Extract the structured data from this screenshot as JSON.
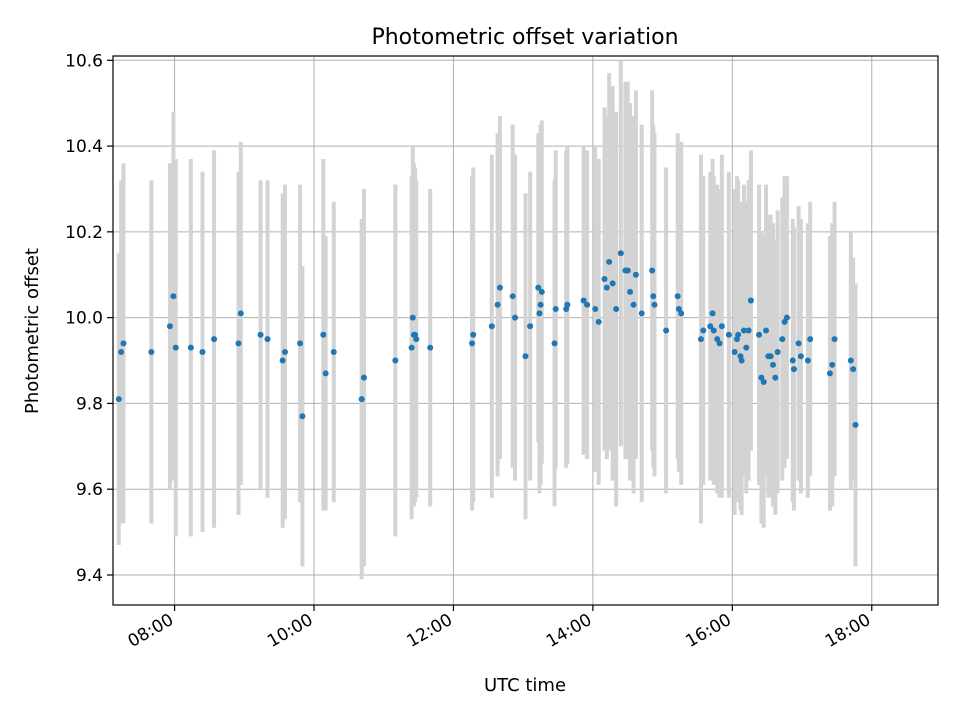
{
  "chart_data": {
    "type": "scatter",
    "title": "Photometric offset variation",
    "xlabel": "UTC time",
    "ylabel": "Photometric offset",
    "x_ticks": [
      "08:00",
      "10:00",
      "12:00",
      "14:00",
      "16:00",
      "18:00"
    ],
    "y_ticks": [
      "9.4",
      "9.6",
      "9.8",
      "10.0",
      "10.2",
      "10.4",
      "10.6"
    ],
    "xlim": [
      "07:07",
      "18:57"
    ],
    "ylim": [
      9.33,
      10.61
    ],
    "grid": true,
    "colors": {
      "point": "#1f77b4",
      "errorbar": "#d3d3d3",
      "grid": "#b0b0b0"
    },
    "points": [
      {
        "t": "07:12",
        "y": 9.81,
        "err": 0.34
      },
      {
        "t": "07:14",
        "y": 9.92,
        "err": 0.4
      },
      {
        "t": "07:16",
        "y": 9.94,
        "err": 0.42
      },
      {
        "t": "07:40",
        "y": 9.92,
        "err": 0.4
      },
      {
        "t": "07:56",
        "y": 9.98,
        "err": 0.38
      },
      {
        "t": "07:59",
        "y": 10.05,
        "err": 0.43
      },
      {
        "t": "08:01",
        "y": 9.93,
        "err": 0.44
      },
      {
        "t": "08:14",
        "y": 9.93,
        "err": 0.44
      },
      {
        "t": "08:24",
        "y": 9.92,
        "err": 0.42
      },
      {
        "t": "08:34",
        "y": 9.95,
        "err": 0.44
      },
      {
        "t": "08:55",
        "y": 9.94,
        "err": 0.4
      },
      {
        "t": "08:57",
        "y": 10.01,
        "err": 0.4
      },
      {
        "t": "09:14",
        "y": 9.96,
        "err": 0.36
      },
      {
        "t": "09:20",
        "y": 9.95,
        "err": 0.37
      },
      {
        "t": "09:33",
        "y": 9.9,
        "err": 0.39
      },
      {
        "t": "09:35",
        "y": 9.92,
        "err": 0.39
      },
      {
        "t": "09:48",
        "y": 9.94,
        "err": 0.37
      },
      {
        "t": "09:50",
        "y": 9.77,
        "err": 0.35
      },
      {
        "t": "10:08",
        "y": 9.96,
        "err": 0.41
      },
      {
        "t": "10:10",
        "y": 9.87,
        "err": 0.32
      },
      {
        "t": "10:17",
        "y": 9.92,
        "err": 0.35
      },
      {
        "t": "10:41",
        "y": 9.81,
        "err": 0.42
      },
      {
        "t": "10:43",
        "y": 9.86,
        "err": 0.44
      },
      {
        "t": "11:10",
        "y": 9.9,
        "err": 0.41
      },
      {
        "t": "11:24",
        "y": 9.93,
        "err": 0.4
      },
      {
        "t": "11:25",
        "y": 10.0,
        "err": 0.4
      },
      {
        "t": "11:26",
        "y": 9.96,
        "err": 0.4
      },
      {
        "t": "11:27",
        "y": 9.96,
        "err": 0.39
      },
      {
        "t": "11:28",
        "y": 9.95,
        "err": 0.37
      },
      {
        "t": "11:40",
        "y": 9.93,
        "err": 0.37
      },
      {
        "t": "12:16",
        "y": 9.94,
        "err": 0.39
      },
      {
        "t": "12:17",
        "y": 9.96,
        "err": 0.39
      },
      {
        "t": "12:33",
        "y": 9.98,
        "err": 0.4
      },
      {
        "t": "12:38",
        "y": 10.03,
        "err": 0.4
      },
      {
        "t": "12:40",
        "y": 10.07,
        "err": 0.4
      },
      {
        "t": "12:51",
        "y": 10.05,
        "err": 0.4
      },
      {
        "t": "12:53",
        "y": 10.0,
        "err": 0.38
      },
      {
        "t": "13:02",
        "y": 9.91,
        "err": 0.38
      },
      {
        "t": "13:06",
        "y": 9.98,
        "err": 0.36
      },
      {
        "t": "13:13",
        "y": 10.07,
        "err": 0.36
      },
      {
        "t": "13:14",
        "y": 10.01,
        "err": 0.42
      },
      {
        "t": "13:15",
        "y": 10.03,
        "err": 0.42
      },
      {
        "t": "13:16",
        "y": 10.06,
        "err": 0.4
      },
      {
        "t": "13:27",
        "y": 9.94,
        "err": 0.38
      },
      {
        "t": "13:28",
        "y": 10.02,
        "err": 0.37
      },
      {
        "t": "13:37",
        "y": 10.02,
        "err": 0.37
      },
      {
        "t": "13:38",
        "y": 10.03,
        "err": 0.37
      },
      {
        "t": "13:52",
        "y": 10.04,
        "err": 0.36
      },
      {
        "t": "13:55",
        "y": 10.03,
        "err": 0.36
      },
      {
        "t": "14:02",
        "y": 10.02,
        "err": 0.38
      },
      {
        "t": "14:05",
        "y": 9.99,
        "err": 0.38
      },
      {
        "t": "14:10",
        "y": 10.09,
        "err": 0.4
      },
      {
        "t": "14:12",
        "y": 10.07,
        "err": 0.4
      },
      {
        "t": "14:14",
        "y": 10.13,
        "err": 0.44
      },
      {
        "t": "14:17",
        "y": 10.08,
        "err": 0.46
      },
      {
        "t": "14:20",
        "y": 10.02,
        "err": 0.46
      },
      {
        "t": "14:24",
        "y": 10.15,
        "err": 0.45
      },
      {
        "t": "14:28",
        "y": 10.11,
        "err": 0.44
      },
      {
        "t": "14:30",
        "y": 10.11,
        "err": 0.44
      },
      {
        "t": "14:32",
        "y": 10.06,
        "err": 0.44
      },
      {
        "t": "14:35",
        "y": 10.03,
        "err": 0.44
      },
      {
        "t": "14:37",
        "y": 10.1,
        "err": 0.43
      },
      {
        "t": "14:42",
        "y": 10.01,
        "err": 0.44
      },
      {
        "t": "14:51",
        "y": 10.11,
        "err": 0.42
      },
      {
        "t": "14:52",
        "y": 10.05,
        "err": 0.4
      },
      {
        "t": "14:53",
        "y": 10.03,
        "err": 0.4
      },
      {
        "t": "15:03",
        "y": 9.97,
        "err": 0.38
      },
      {
        "t": "15:13",
        "y": 10.05,
        "err": 0.38
      },
      {
        "t": "15:14",
        "y": 10.02,
        "err": 0.38
      },
      {
        "t": "15:16",
        "y": 10.01,
        "err": 0.4
      },
      {
        "t": "15:33",
        "y": 9.95,
        "err": 0.43
      },
      {
        "t": "15:35",
        "y": 9.97,
        "err": 0.36
      },
      {
        "t": "15:41",
        "y": 9.98,
        "err": 0.36
      },
      {
        "t": "15:43",
        "y": 10.01,
        "err": 0.36
      },
      {
        "t": "15:44",
        "y": 9.97,
        "err": 0.36
      },
      {
        "t": "15:47",
        "y": 9.95,
        "err": 0.36
      },
      {
        "t": "15:49",
        "y": 9.94,
        "err": 0.36
      },
      {
        "t": "15:51",
        "y": 9.98,
        "err": 0.4
      },
      {
        "t": "15:57",
        "y": 9.96,
        "err": 0.38
      },
      {
        "t": "16:02",
        "y": 9.92,
        "err": 0.38
      },
      {
        "t": "16:04",
        "y": 9.95,
        "err": 0.38
      },
      {
        "t": "16:05",
        "y": 9.96,
        "err": 0.36
      },
      {
        "t": "16:07",
        "y": 9.91,
        "err": 0.36
      },
      {
        "t": "16:08",
        "y": 9.9,
        "err": 0.36
      },
      {
        "t": "16:10",
        "y": 9.97,
        "err": 0.34
      },
      {
        "t": "16:12",
        "y": 9.93,
        "err": 0.34
      },
      {
        "t": "16:14",
        "y": 9.97,
        "err": 0.35
      },
      {
        "t": "16:16",
        "y": 10.04,
        "err": 0.35
      },
      {
        "t": "16:23",
        "y": 9.96,
        "err": 0.35
      },
      {
        "t": "16:25",
        "y": 9.86,
        "err": 0.34
      },
      {
        "t": "16:27",
        "y": 9.85,
        "err": 0.34
      },
      {
        "t": "16:29",
        "y": 9.97,
        "err": 0.34
      },
      {
        "t": "16:31",
        "y": 9.91,
        "err": 0.33
      },
      {
        "t": "16:33",
        "y": 9.91,
        "err": 0.33
      },
      {
        "t": "16:35",
        "y": 9.89,
        "err": 0.33
      },
      {
        "t": "16:37",
        "y": 9.86,
        "err": 0.32
      },
      {
        "t": "16:39",
        "y": 9.92,
        "err": 0.33
      },
      {
        "t": "16:43",
        "y": 9.95,
        "err": 0.33
      },
      {
        "t": "16:45",
        "y": 9.99,
        "err": 0.34
      },
      {
        "t": "16:47",
        "y": 10.0,
        "err": 0.33
      },
      {
        "t": "16:52",
        "y": 9.9,
        "err": 0.33
      },
      {
        "t": "16:53",
        "y": 9.88,
        "err": 0.33
      },
      {
        "t": "16:57",
        "y": 9.94,
        "err": 0.32
      },
      {
        "t": "16:59",
        "y": 9.91,
        "err": 0.32
      },
      {
        "t": "17:05",
        "y": 9.9,
        "err": 0.32
      },
      {
        "t": "17:07",
        "y": 9.95,
        "err": 0.32
      },
      {
        "t": "17:24",
        "y": 9.87,
        "err": 0.32
      },
      {
        "t": "17:26",
        "y": 9.89,
        "err": 0.33
      },
      {
        "t": "17:28",
        "y": 9.95,
        "err": 0.32
      },
      {
        "t": "17:42",
        "y": 9.9,
        "err": 0.3
      },
      {
        "t": "17:44",
        "y": 9.88,
        "err": 0.26
      },
      {
        "t": "17:46",
        "y": 9.75,
        "err": 0.33
      }
    ]
  }
}
